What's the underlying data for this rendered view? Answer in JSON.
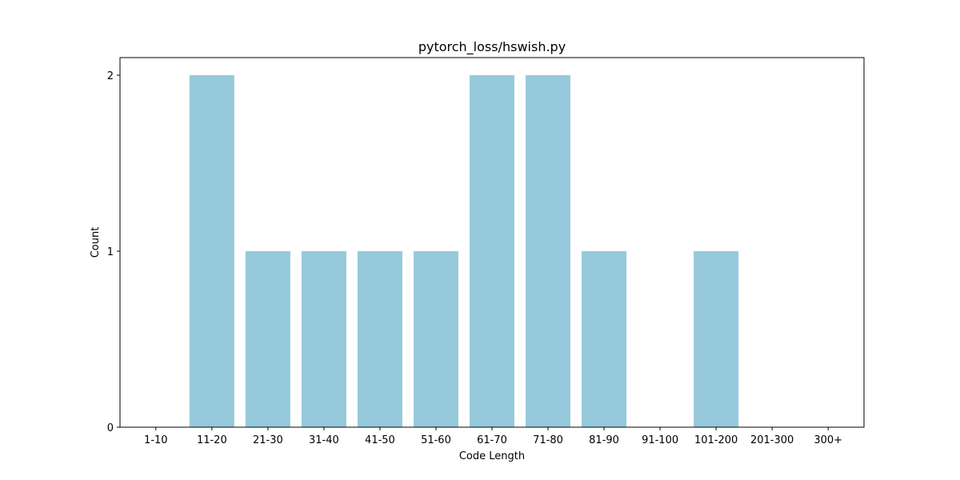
{
  "chart_data": {
    "type": "bar",
    "title": "pytorch_loss/hswish.py",
    "xlabel": "Code Length",
    "ylabel": "Count",
    "categories": [
      "1-10",
      "11-20",
      "21-30",
      "31-40",
      "41-50",
      "51-60",
      "61-70",
      "71-80",
      "81-90",
      "91-100",
      "101-200",
      "201-300",
      "300+"
    ],
    "values": [
      0,
      2,
      1,
      1,
      1,
      1,
      2,
      2,
      1,
      0,
      1,
      0,
      0
    ],
    "yticks": [
      0,
      1,
      2
    ],
    "ylim": [
      0,
      2.1
    ],
    "grid": false,
    "bar_color": "#96c9dc"
  }
}
